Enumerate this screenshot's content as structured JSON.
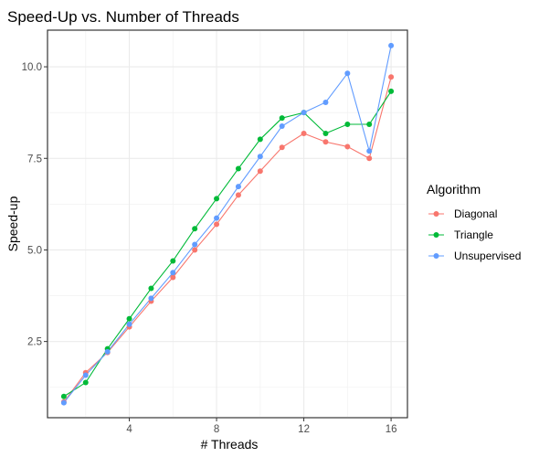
{
  "chart_data": {
    "type": "line",
    "title": "Speed-Up vs. Number of Threads",
    "xlabel": "# Threads",
    "ylabel": "Speed-up",
    "xlim": [
      0.25,
      16.75
    ],
    "ylim": [
      0.42,
      11.0
    ],
    "xticks": [
      4,
      8,
      12,
      16
    ],
    "yticks": [
      2.5,
      5.0,
      7.5,
      10.0
    ],
    "ytick_labels": [
      "2.5",
      "5.0",
      "7.5",
      "10.0"
    ],
    "grid": true,
    "legend_title": "Algorithm",
    "legend_position": "right",
    "x": [
      1,
      2,
      3,
      4,
      5,
      6,
      7,
      8,
      9,
      10,
      11,
      12,
      13,
      14,
      15,
      16
    ],
    "series": [
      {
        "name": "Diagonal",
        "color": "#F8766D",
        "values": [
          0.85,
          1.65,
          2.2,
          2.9,
          3.6,
          4.25,
          5.0,
          5.7,
          6.5,
          7.15,
          7.8,
          8.18,
          7.95,
          7.82,
          7.5,
          9.72
        ]
      },
      {
        "name": "Triangle",
        "color": "#00BA38",
        "values": [
          1.0,
          1.38,
          2.3,
          3.12,
          3.95,
          4.7,
          5.58,
          6.4,
          7.22,
          8.02,
          8.6,
          8.75,
          8.18,
          8.43,
          8.43,
          9.33
        ]
      },
      {
        "name": "Unsupervised",
        "color": "#619CFF",
        "values": [
          0.83,
          1.58,
          2.22,
          2.97,
          3.68,
          4.38,
          5.15,
          5.87,
          6.73,
          7.55,
          8.38,
          8.75,
          9.03,
          9.82,
          7.7,
          10.58
        ]
      }
    ]
  }
}
